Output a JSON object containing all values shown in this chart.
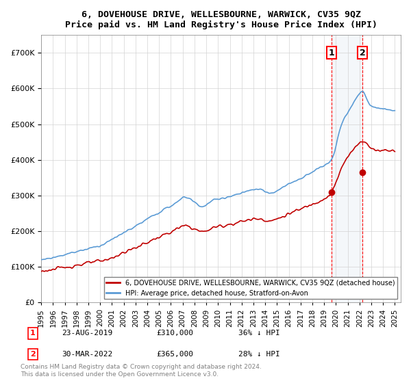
{
  "title": "6, DOVEHOUSE DRIVE, WELLESBOURNE, WARWICK, CV35 9QZ",
  "subtitle": "Price paid vs. HM Land Registry's House Price Index (HPI)",
  "legend_entry1": "6, DOVEHOUSE DRIVE, WELLESBOURNE, WARWICK, CV35 9QZ (detached house)",
  "legend_entry2": "HPI: Average price, detached house, Stratford-on-Avon",
  "sale1_label": "1",
  "sale1_date": "23-AUG-2019",
  "sale1_price": "£310,000",
  "sale1_hpi": "36% ↓ HPI",
  "sale1_year": 2019.65,
  "sale1_value": 310000,
  "sale2_label": "2",
  "sale2_date": "30-MAR-2022",
  "sale2_price": "£365,000",
  "sale2_hpi": "28% ↓ HPI",
  "sale2_year": 2022.25,
  "sale2_value": 365000,
  "hpi_color": "#5b9bd5",
  "price_color": "#c00000",
  "vline_color": "#ff0000",
  "highlight_color": "#dce6f1",
  "footer": "Contains HM Land Registry data © Crown copyright and database right 2024.\nThis data is licensed under the Open Government Licence v3.0.",
  "ylim_min": 0,
  "ylim_max": 750000,
  "yticks": [
    0,
    100000,
    200000,
    300000,
    400000,
    500000,
    600000,
    700000
  ]
}
